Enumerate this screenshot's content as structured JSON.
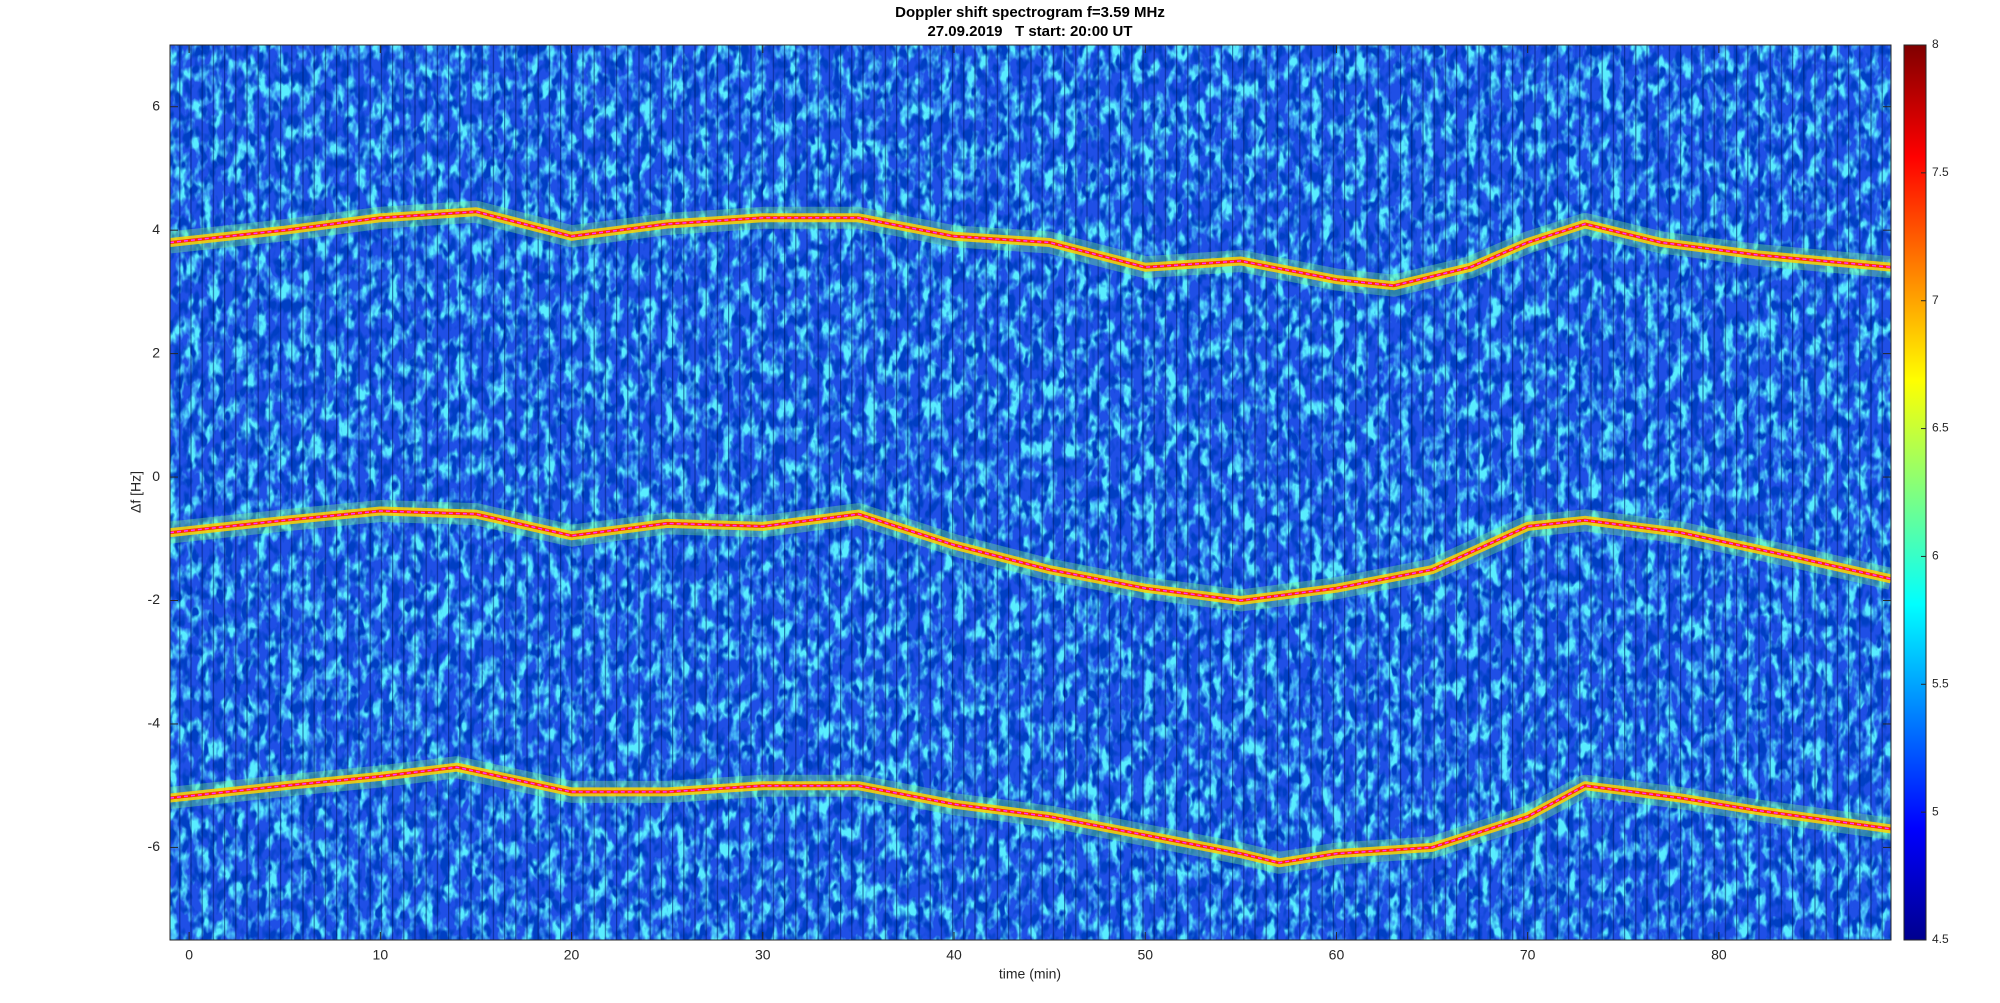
{
  "chart_data": {
    "type": "spectrogram",
    "title": "Doppler shift spectrogram f=3.59 MHz",
    "subtitle": "27.09.2019   T start: 20:00 UT",
    "x_label": "time (min)",
    "y_label": "Δf [Hz]",
    "xlim": [
      -1,
      89
    ],
    "xticks": [
      0,
      10,
      20,
      30,
      40,
      50,
      60,
      70,
      80
    ],
    "ylim": [
      -7.5,
      7
    ],
    "yticks": [
      -6,
      -4,
      -2,
      0,
      2,
      4,
      6
    ],
    "colorbar": {
      "lim": [
        4.5,
        8
      ],
      "ticks": [
        4.5,
        5,
        5.5,
        6,
        6.5,
        7,
        7.5,
        8
      ],
      "colormap": "jet"
    },
    "series": [
      {
        "color": "#ff33ff",
        "x": [
          -1,
          5,
          10,
          15,
          20,
          25,
          30,
          35,
          40,
          45,
          50,
          55,
          60,
          63,
          67,
          70,
          73,
          77,
          82,
          89
        ],
        "values": [
          3.8,
          4.0,
          4.2,
          4.3,
          3.9,
          4.1,
          4.2,
          4.2,
          3.9,
          3.8,
          3.4,
          3.5,
          3.2,
          3.1,
          3.4,
          3.8,
          4.1,
          3.8,
          3.6,
          3.4
        ]
      },
      {
        "color": "#ff33ff",
        "x": [
          -1,
          5,
          10,
          15,
          20,
          25,
          30,
          35,
          40,
          45,
          50,
          55,
          60,
          65,
          70,
          73,
          78,
          84,
          89
        ],
        "values": [
          -0.9,
          -0.7,
          -0.55,
          -0.6,
          -0.95,
          -0.75,
          -0.8,
          -0.6,
          -1.1,
          -1.5,
          -1.8,
          -2.0,
          -1.8,
          -1.5,
          -0.8,
          -0.7,
          -0.9,
          -1.3,
          -1.65
        ]
      },
      {
        "color": "#ff33ff",
        "x": [
          -1,
          5,
          10,
          14,
          20,
          25,
          30,
          35,
          40,
          45,
          50,
          55,
          57,
          60,
          65,
          70,
          73,
          78,
          82,
          89
        ],
        "values": [
          -5.2,
          -5.0,
          -4.85,
          -4.7,
          -5.1,
          -5.1,
          -5.0,
          -5.0,
          -5.3,
          -5.5,
          -5.8,
          -6.1,
          -6.25,
          -6.1,
          -6.0,
          -5.5,
          -5.0,
          -5.2,
          -5.4,
          -5.7
        ]
      }
    ]
  }
}
